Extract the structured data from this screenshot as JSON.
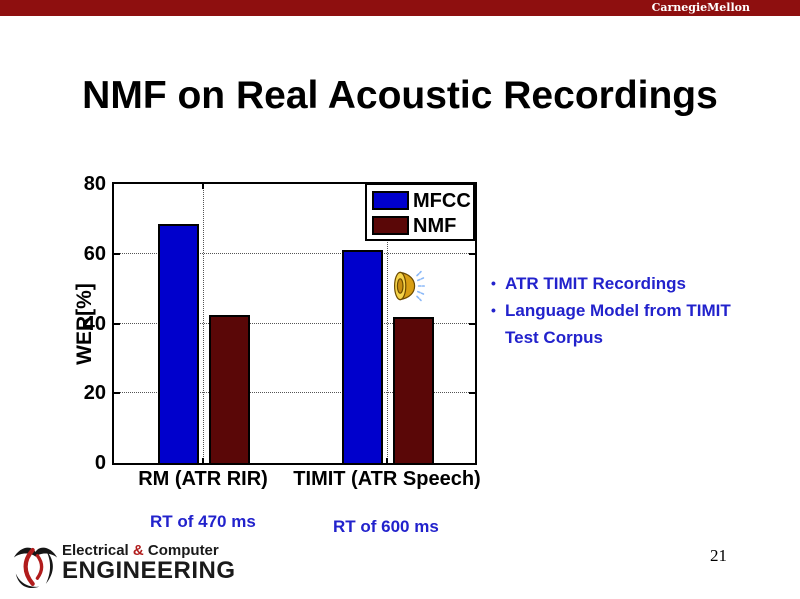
{
  "header": {
    "brand": "CarnegieMellon",
    "bar_color": "#8E0F0F"
  },
  "title": "NMF on Real Acoustic Recordings",
  "chart_data": {
    "type": "bar",
    "title": "",
    "categories": [
      "RM (ATR RIR)",
      "TIMIT (ATR Speech)"
    ],
    "series": [
      {
        "name": "MFCC",
        "color": "#0000CC",
        "values": [
          68.5,
          61
        ]
      },
      {
        "name": "NMF",
        "color": "#5A0707",
        "values": [
          42.5,
          42
        ]
      }
    ],
    "xlabel": "",
    "ylabel": "WER[%]",
    "ylim": [
      0,
      80
    ],
    "yticks": [
      0,
      20,
      40,
      60,
      80
    ],
    "grid": "dotted horizontal at 20/40/60 plus dotted vertical at category centers",
    "legend_position": "top-right inside plot"
  },
  "annotations": {
    "bullets": [
      "ATR TIMIT Recordings",
      "Language Model from TIMIT Test Corpus"
    ],
    "text_color": "#2222CC",
    "rt_labels": [
      {
        "text": "RT of 470 ms"
      },
      {
        "text": "RT of 600 ms"
      }
    ],
    "audio_icons": [
      {
        "icon": "speaker-icon"
      },
      {
        "icon": "speaker-icon"
      }
    ]
  },
  "footer": {
    "logo": {
      "line1_left": "Electrical",
      "amp": "&",
      "line1_right": "Computer",
      "line2": "ENGINEERING",
      "amp_color": "#B11C1C"
    },
    "page_number": "21"
  }
}
